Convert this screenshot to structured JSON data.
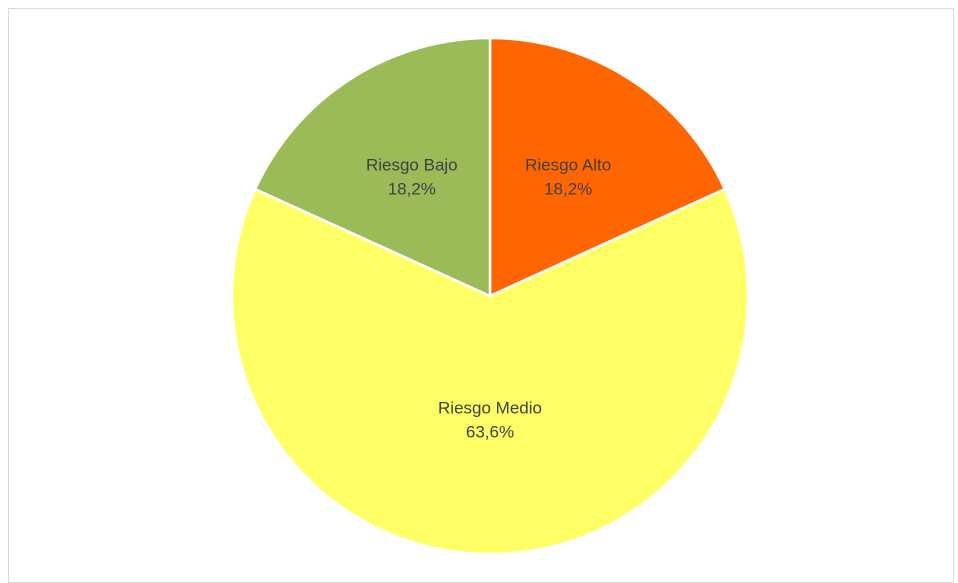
{
  "chart_data": {
    "type": "pie",
    "title": "",
    "legend": "none",
    "slices": [
      {
        "label": "Riesgo Alto",
        "value": 18.2,
        "pct_label": "18,2%",
        "color": "#ff6600"
      },
      {
        "label": "Riesgo Medio",
        "value": 63.6,
        "pct_label": "63,6%",
        "color": "#ffff66"
      },
      {
        "label": "Riesgo Bajo",
        "value": 18.2,
        "pct_label": "18,2%",
        "color": "#9bbb59"
      }
    ]
  }
}
